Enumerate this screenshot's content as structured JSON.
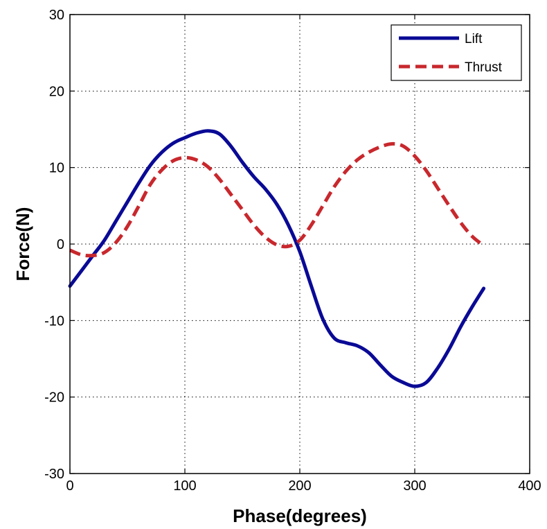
{
  "chart_data": {
    "type": "line",
    "title": "",
    "xlabel": "Phase(degrees)",
    "ylabel": "Force(N)",
    "xlim": [
      0,
      400
    ],
    "ylim": [
      -30,
      30
    ],
    "xticks": [
      0,
      100,
      200,
      300,
      400
    ],
    "yticks": [
      -30,
      -20,
      -10,
      0,
      10,
      20,
      30
    ],
    "grid": true,
    "grid_style": "dotted",
    "legend_position": "top-right",
    "series": [
      {
        "name": "Lift",
        "color": "#0A0A96",
        "line_style": "solid",
        "x": [
          0,
          10,
          20,
          30,
          40,
          50,
          60,
          70,
          80,
          90,
          100,
          110,
          120,
          130,
          140,
          150,
          160,
          170,
          180,
          190,
          200,
          210,
          220,
          230,
          240,
          250,
          260,
          270,
          280,
          290,
          300,
          310,
          320,
          330,
          340,
          350,
          360
        ],
        "y": [
          -5.5,
          -3.5,
          -1.5,
          0.5,
          3.0,
          5.5,
          8.0,
          10.3,
          12.0,
          13.2,
          13.9,
          14.5,
          14.8,
          14.4,
          12.8,
          10.7,
          8.8,
          7.2,
          5.2,
          2.5,
          -1.0,
          -5.5,
          -9.8,
          -12.3,
          -12.9,
          -13.3,
          -14.2,
          -15.8,
          -17.3,
          -18.1,
          -18.6,
          -18.1,
          -16.2,
          -13.7,
          -10.8,
          -8.2,
          -5.8
        ]
      },
      {
        "name": "Thrust",
        "color": "#C8282D",
        "line_style": "dashed",
        "x": [
          0,
          10,
          20,
          30,
          40,
          50,
          60,
          70,
          80,
          90,
          100,
          110,
          120,
          130,
          140,
          150,
          160,
          170,
          180,
          190,
          200,
          210,
          220,
          230,
          240,
          250,
          260,
          270,
          280,
          290,
          300,
          310,
          320,
          330,
          340,
          350,
          360
        ],
        "y": [
          -0.8,
          -1.4,
          -1.5,
          -1.1,
          0.2,
          2.3,
          5.0,
          7.8,
          9.7,
          10.9,
          11.3,
          11.0,
          10.1,
          8.5,
          6.5,
          4.5,
          2.5,
          0.9,
          -0.1,
          -0.3,
          0.5,
          2.5,
          5.0,
          7.5,
          9.5,
          11.0,
          12.0,
          12.7,
          13.1,
          12.8,
          11.5,
          9.6,
          7.3,
          5.0,
          2.8,
          1.0,
          -0.2
        ]
      }
    ]
  }
}
